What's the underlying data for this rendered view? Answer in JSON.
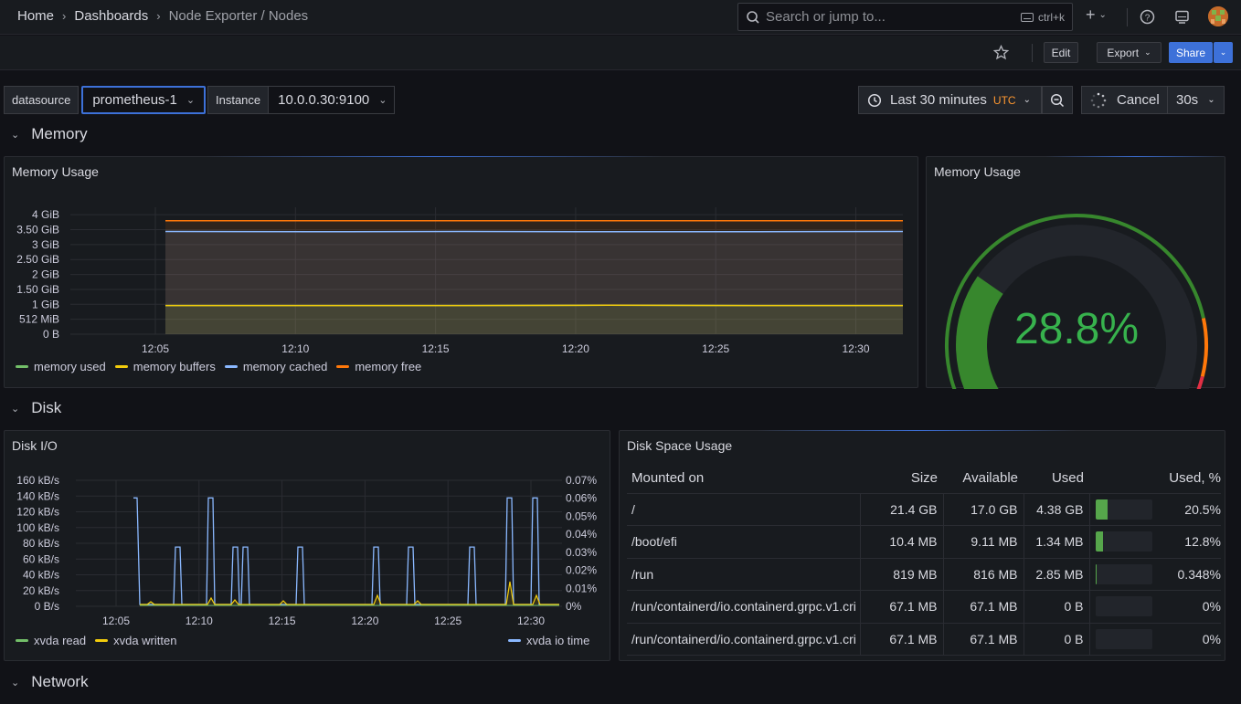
{
  "breadcrumb": {
    "home": "Home",
    "dashboards": "Dashboards",
    "current": "Node Exporter / Nodes"
  },
  "search": {
    "placeholder": "Search or jump to...",
    "shortcut": "ctrl+k"
  },
  "toolbar": {
    "edit": "Edit",
    "export": "Export",
    "share": "Share"
  },
  "variables": [
    {
      "label": "datasource",
      "value": "prometheus-1"
    },
    {
      "label": "Instance",
      "value": "10.0.0.30:9100"
    }
  ],
  "time": {
    "range": "Last 30 minutes",
    "tz": "UTC",
    "cancel": "Cancel",
    "refresh": "30s"
  },
  "rows": {
    "memory": "Memory",
    "disk": "Disk",
    "network": "Network"
  },
  "colors": {
    "green": "#73bf69",
    "yellow": "#f2cc0c",
    "blue": "#8ab8ff",
    "orange": "#ff780a",
    "red": "#f2495c"
  },
  "memory_usage": {
    "title": "Memory Usage",
    "chart_data": {
      "type": "area",
      "x": [
        "12:05",
        "12:10",
        "12:15",
        "12:20",
        "12:25",
        "12:30"
      ],
      "y_ticks": [
        "0 B",
        "512 MiB",
        "1 GiB",
        "1.50 GiB",
        "2 GiB",
        "2.50 GiB",
        "3 GiB",
        "3.50 GiB",
        "4 GiB"
      ],
      "ylim_gib": [
        0,
        4.25
      ],
      "series": [
        {
          "name": "memory used",
          "color": "#73bf69",
          "values_gib": [
            0.96,
            0.96,
            0.96,
            0.97,
            0.96,
            0.96
          ]
        },
        {
          "name": "memory buffers",
          "color": "#f2cc0c",
          "values_gib": [
            0.96,
            0.96,
            0.96,
            0.97,
            0.96,
            0.96
          ]
        },
        {
          "name": "memory cached",
          "color": "#8ab8ff",
          "values_gib": [
            3.44,
            3.43,
            3.44,
            3.43,
            3.43,
            3.44
          ]
        },
        {
          "name": "memory free",
          "color": "#ff780a",
          "values_gib": [
            3.8,
            3.8,
            3.8,
            3.8,
            3.8,
            3.8
          ]
        }
      ]
    }
  },
  "memory_gauge": {
    "title": "Memory Usage",
    "value": "28.8%",
    "fraction": 0.288
  },
  "disk_io": {
    "title": "Disk I/O",
    "chart_data": {
      "type": "line",
      "x": [
        "12:05",
        "12:10",
        "12:15",
        "12:20",
        "12:25",
        "12:30"
      ],
      "y_left_ticks": [
        "0 B/s",
        "20 kB/s",
        "40 kB/s",
        "60 kB/s",
        "80 kB/s",
        "100 kB/s",
        "120 kB/s",
        "140 kB/s",
        "160 kB/s"
      ],
      "y_right_ticks": [
        "0%",
        "0.01%",
        "0.02%",
        "0.03%",
        "0.04%",
        "0.05%",
        "0.06%",
        "0.07%"
      ],
      "series": [
        {
          "name": "xvda read",
          "color": "#73bf69"
        },
        {
          "name": "xvda written",
          "color": "#f2cc0c"
        },
        {
          "name": "xvda io time",
          "color": "#8ab8ff"
        }
      ]
    }
  },
  "disk_space": {
    "title": "Disk Space Usage",
    "columns": [
      "Mounted on",
      "Size",
      "Available",
      "Used",
      "Used, %"
    ],
    "rows": [
      {
        "mount": "/",
        "size": "21.4 GB",
        "avail": "17.0 GB",
        "used": "4.38 GB",
        "pct": "20.5%",
        "frac": 0.205
      },
      {
        "mount": "/boot/efi",
        "size": "10.4 MB",
        "avail": "9.11 MB",
        "used": "1.34 MB",
        "pct": "12.8%",
        "frac": 0.128
      },
      {
        "mount": "/run",
        "size": "819 MB",
        "avail": "816 MB",
        "used": "2.85 MB",
        "pct": "0.348%",
        "frac": 0.00348
      },
      {
        "mount": "/run/containerd/io.containerd.grpc.v1.cri",
        "size": "67.1 MB",
        "avail": "67.1 MB",
        "used": "0 B",
        "pct": "0%",
        "frac": 0
      },
      {
        "mount": "/run/containerd/io.containerd.grpc.v1.cri",
        "size": "67.1 MB",
        "avail": "67.1 MB",
        "used": "0 B",
        "pct": "0%",
        "frac": 0
      }
    ]
  }
}
